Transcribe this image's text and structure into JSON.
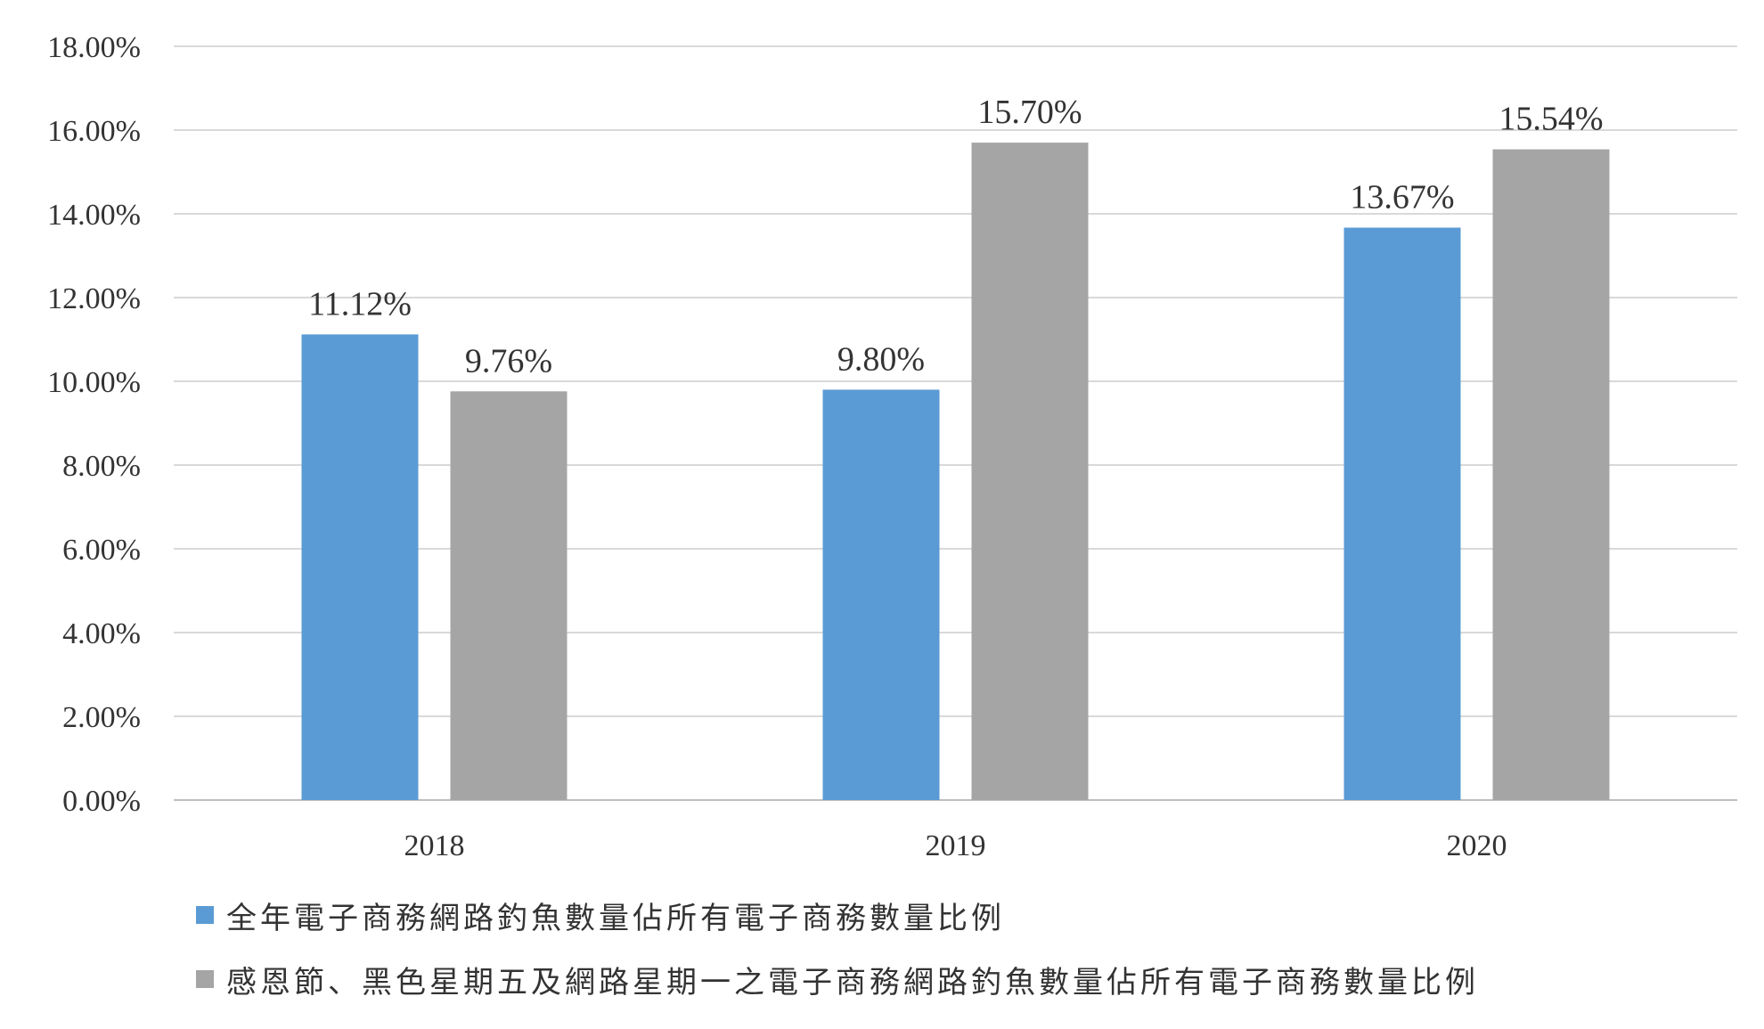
{
  "chart_data": {
    "type": "bar",
    "title": "",
    "xlabel": "",
    "ylabel": "",
    "categories": [
      "2018",
      "2019",
      "2020"
    ],
    "series": [
      {
        "name": "全年電子商務網路釣魚數量佔所有電子商務數量比例",
        "color": "#5B9BD5",
        "values": [
          11.12,
          9.8,
          13.67
        ],
        "labels": [
          "11.12%",
          "9.80%",
          "13.67%"
        ]
      },
      {
        "name": "感恩節、黑色星期五及網路星期一之電子商務網路釣魚數量佔所有電子商務數量比例",
        "color": "#A5A5A5",
        "values": [
          9.76,
          15.7,
          15.54
        ],
        "labels": [
          "9.76%",
          "15.70%",
          "15.54%"
        ]
      }
    ],
    "ylim": [
      0,
      18
    ],
    "yticks": [
      0,
      2,
      4,
      6,
      8,
      10,
      12,
      14,
      16,
      18
    ],
    "ytick_labels": [
      "0.00%",
      "2.00%",
      "4.00%",
      "6.00%",
      "8.00%",
      "10.00%",
      "12.00%",
      "14.00%",
      "16.00%",
      "18.00%"
    ],
    "grid": true,
    "gridline_color": "#D9D9D9",
    "legend_position": "bottom"
  }
}
